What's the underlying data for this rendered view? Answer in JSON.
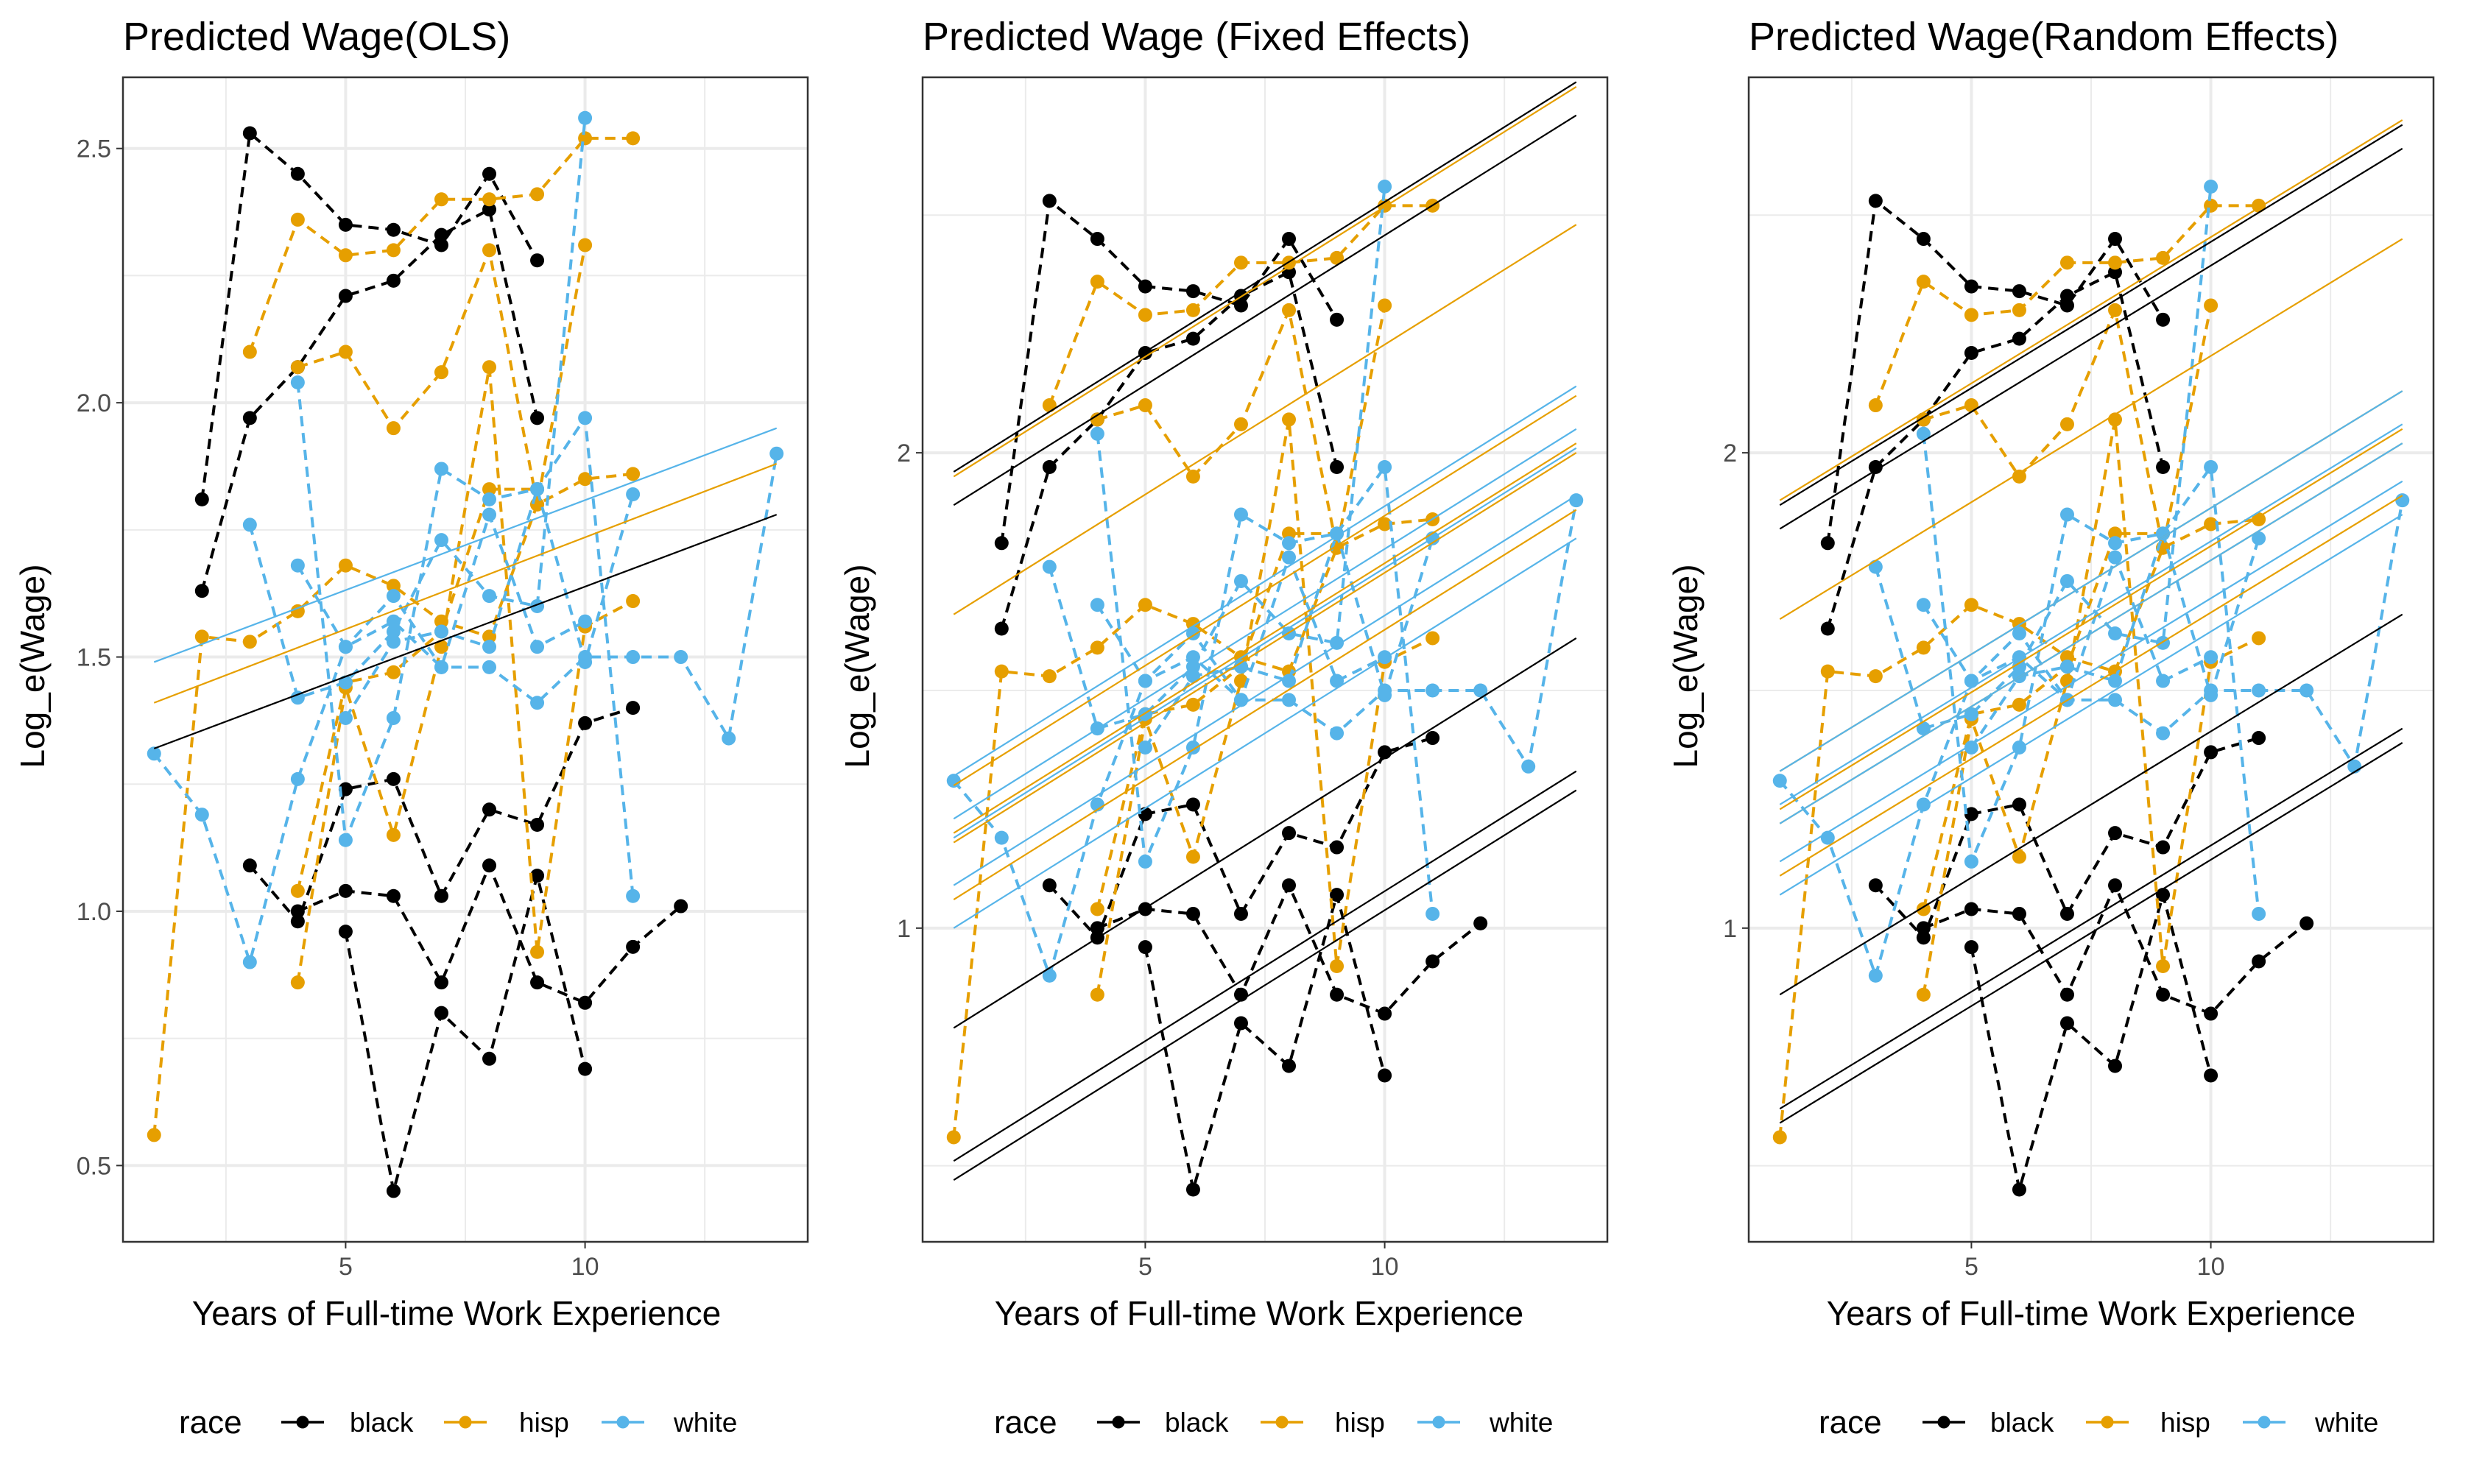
{
  "colors": {
    "black": "#000000",
    "hisp": "#E69F00",
    "white": "#56B4E9",
    "grid": "#EBEBEB",
    "panel_border": "#333333"
  },
  "legend": {
    "title": "race",
    "entries": [
      "black",
      "hisp",
      "white"
    ],
    "position": "bottom"
  },
  "chart_data": [
    {
      "type": "line",
      "title": "Predicted Wage(OLS)",
      "xlabel": "Years of Full-time Work Experience",
      "ylabel": "Log_e(Wage)",
      "xlim": [
        0.35,
        14.65
      ],
      "ylim": [
        0.35,
        2.64
      ],
      "xticks": [
        5,
        10
      ],
      "yticks": [
        0.5,
        1.0,
        1.5,
        2.0,
        2.5
      ],
      "ytick_labels": [
        "0.5",
        "1.0",
        "1.5",
        "2.0",
        "2.5"
      ],
      "grid": true,
      "fitted_lines": [
        {
          "race": "black",
          "x": [
            1,
            14
          ],
          "y": [
            1.32,
            1.78
          ]
        },
        {
          "race": "hisp",
          "x": [
            1,
            14
          ],
          "y": [
            1.41,
            1.88
          ]
        },
        {
          "race": "white",
          "x": [
            1,
            14
          ],
          "y": [
            1.49,
            1.95
          ]
        }
      ]
    },
    {
      "type": "line",
      "title": "Predicted Wage (Fixed Effects)",
      "xlabel": "Years of Full-time Work Experience",
      "ylabel": "Log_e(Wage)",
      "xlim": [
        0.35,
        14.65
      ],
      "ylim": [
        0.34,
        2.79
      ],
      "xticks": [
        5,
        10
      ],
      "yticks": [
        1,
        2
      ],
      "ytick_labels": [
        "1",
        "2"
      ],
      "grid": true,
      "fitted_lines": [
        {
          "race": "black",
          "x": [
            1,
            14
          ],
          "y": [
            1.96,
            2.78
          ]
        },
        {
          "race": "black",
          "x": [
            1,
            14
          ],
          "y": [
            1.89,
            2.71
          ]
        },
        {
          "race": "black",
          "x": [
            1,
            14
          ],
          "y": [
            0.79,
            1.61
          ]
        },
        {
          "race": "black",
          "x": [
            1,
            14
          ],
          "y": [
            0.51,
            1.33
          ]
        },
        {
          "race": "black",
          "x": [
            1,
            14
          ],
          "y": [
            0.47,
            1.29
          ]
        },
        {
          "race": "hisp",
          "x": [
            1,
            14
          ],
          "y": [
            1.95,
            2.77
          ]
        },
        {
          "race": "hisp",
          "x": [
            1,
            14
          ],
          "y": [
            1.66,
            2.48
          ]
        },
        {
          "race": "hisp",
          "x": [
            1,
            14
          ],
          "y": [
            1.3,
            2.12
          ]
        },
        {
          "race": "hisp",
          "x": [
            1,
            14
          ],
          "y": [
            1.2,
            2.02
          ]
        },
        {
          "race": "hisp",
          "x": [
            1,
            14
          ],
          "y": [
            1.18,
            2.0
          ]
        },
        {
          "race": "hisp",
          "x": [
            1,
            14
          ],
          "y": [
            1.06,
            1.88
          ]
        },
        {
          "race": "white",
          "x": [
            1,
            14
          ],
          "y": [
            1.32,
            2.14
          ]
        },
        {
          "race": "white",
          "x": [
            1,
            14
          ],
          "y": [
            1.23,
            2.05
          ]
        },
        {
          "race": "white",
          "x": [
            1,
            14
          ],
          "y": [
            1.19,
            2.01
          ]
        },
        {
          "race": "white",
          "x": [
            1,
            14
          ],
          "y": [
            1.09,
            1.91
          ]
        },
        {
          "race": "white",
          "x": [
            1,
            14
          ],
          "y": [
            1.0,
            1.82
          ]
        }
      ]
    },
    {
      "type": "line",
      "title": "Predicted Wage(Random Effects)",
      "xlabel": "Years of Full-time Work Experience",
      "ylabel": "Log_e(Wage)",
      "xlim": [
        0.35,
        14.65
      ],
      "ylim": [
        0.34,
        2.79
      ],
      "xticks": [
        5,
        10
      ],
      "yticks": [
        1,
        2
      ],
      "ytick_labels": [
        "1",
        "2"
      ],
      "grid": true,
      "fitted_lines": [
        {
          "race": "black",
          "x": [
            1,
            14
          ],
          "y": [
            1.89,
            2.69
          ]
        },
        {
          "race": "black",
          "x": [
            1,
            14
          ],
          "y": [
            1.84,
            2.64
          ]
        },
        {
          "race": "black",
          "x": [
            1,
            14
          ],
          "y": [
            0.86,
            1.66
          ]
        },
        {
          "race": "black",
          "x": [
            1,
            14
          ],
          "y": [
            0.62,
            1.42
          ]
        },
        {
          "race": "black",
          "x": [
            1,
            14
          ],
          "y": [
            0.59,
            1.39
          ]
        },
        {
          "race": "hisp",
          "x": [
            1,
            14
          ],
          "y": [
            1.9,
            2.7
          ]
        },
        {
          "race": "hisp",
          "x": [
            1,
            14
          ],
          "y": [
            1.65,
            2.45
          ]
        },
        {
          "race": "hisp",
          "x": [
            1,
            14
          ],
          "y": [
            1.33,
            2.13
          ]
        },
        {
          "race": "hisp",
          "x": [
            1,
            14
          ],
          "y": [
            1.25,
            2.05
          ]
        },
        {
          "race": "hisp",
          "x": [
            1,
            14
          ],
          "y": [
            1.22,
            2.02
          ]
        },
        {
          "race": "hisp",
          "x": [
            1,
            14
          ],
          "y": [
            1.11,
            1.91
          ]
        },
        {
          "race": "white",
          "x": [
            1,
            14
          ],
          "y": [
            1.33,
            2.13
          ]
        },
        {
          "race": "white",
          "x": [
            1,
            14
          ],
          "y": [
            1.26,
            2.06
          ]
        },
        {
          "race": "white",
          "x": [
            1,
            14
          ],
          "y": [
            1.22,
            2.02
          ]
        },
        {
          "race": "white",
          "x": [
            1,
            14
          ],
          "y": [
            1.14,
            1.94
          ]
        },
        {
          "race": "white",
          "x": [
            1,
            14
          ],
          "y": [
            1.07,
            1.87
          ]
        }
      ]
    }
  ],
  "observed_series": [
    {
      "race": "black",
      "x": [
        2,
        3,
        4,
        5,
        6,
        7,
        8,
        9
      ],
      "y": [
        1.81,
        2.53,
        2.45,
        2.35,
        2.34,
        2.31,
        2.45,
        2.28
      ]
    },
    {
      "race": "black",
      "x": [
        2,
        3,
        4,
        5,
        6,
        7,
        8,
        9
      ],
      "y": [
        1.63,
        1.97,
        2.07,
        2.21,
        2.24,
        2.33,
        2.38,
        1.97
      ]
    },
    {
      "race": "black",
      "x": [
        3,
        4,
        5,
        6,
        7,
        8,
        9,
        10,
        11
      ],
      "y": [
        1.09,
        0.98,
        1.24,
        1.26,
        1.03,
        1.2,
        1.17,
        1.37,
        1.4
      ]
    },
    {
      "race": "black",
      "x": [
        4,
        5,
        6,
        7,
        8,
        9,
        10,
        11,
        12
      ],
      "y": [
        1.0,
        1.04,
        1.03,
        0.86,
        1.09,
        0.86,
        0.82,
        0.93,
        1.01
      ]
    },
    {
      "race": "black",
      "x": [
        5,
        6,
        7,
        8,
        9,
        10
      ],
      "y": [
        0.96,
        0.45,
        0.8,
        0.71,
        1.07,
        0.69
      ]
    },
    {
      "race": "hisp",
      "x": [
        1,
        2,
        3,
        4,
        5,
        6,
        7,
        8,
        9,
        10,
        11
      ],
      "y": [
        0.56,
        1.54,
        1.53,
        1.59,
        1.68,
        1.64,
        1.57,
        1.54,
        1.8,
        1.85,
        1.86
      ]
    },
    {
      "race": "hisp",
      "x": [
        3,
        4,
        5,
        6,
        7,
        8,
        9,
        10,
        11
      ],
      "y": [
        2.1,
        2.36,
        2.29,
        2.3,
        2.4,
        2.4,
        2.41,
        2.52,
        2.52
      ]
    },
    {
      "race": "hisp",
      "x": [
        4,
        5,
        6,
        7,
        8,
        9,
        10
      ],
      "y": [
        2.07,
        2.1,
        1.95,
        2.06,
        2.3,
        1.8,
        2.31
      ]
    },
    {
      "race": "hisp",
      "x": [
        4,
        5,
        6,
        7,
        8,
        9,
        10,
        11
      ],
      "y": [
        0.86,
        1.44,
        1.15,
        1.52,
        2.07,
        0.92,
        1.56,
        1.61
      ]
    },
    {
      "race": "hisp",
      "x": [
        4,
        5,
        6,
        7,
        8,
        9
      ],
      "y": [
        1.04,
        1.45,
        1.47,
        1.55,
        1.83,
        1.83
      ]
    },
    {
      "race": "white",
      "x": [
        1,
        2,
        3,
        4,
        5,
        6,
        7,
        8,
        9,
        10,
        11,
        12,
        13,
        14
      ],
      "y": [
        1.31,
        1.19,
        0.9,
        1.26,
        1.52,
        1.62,
        1.48,
        1.48,
        1.41,
        1.5,
        1.5,
        1.5,
        1.34,
        1.9
      ]
    },
    {
      "race": "white",
      "x": [
        3,
        4,
        5,
        6,
        7,
        8,
        9,
        10
      ],
      "y": [
        1.76,
        1.42,
        1.45,
        1.55,
        1.73,
        1.62,
        1.6,
        2.56
      ]
    },
    {
      "race": "white",
      "x": [
        4,
        5,
        6,
        7,
        8,
        9,
        10,
        11
      ],
      "y": [
        2.04,
        1.14,
        1.38,
        1.87,
        1.81,
        1.83,
        1.97,
        1.03
      ]
    },
    {
      "race": "white",
      "x": [
        4,
        5,
        6,
        7,
        8,
        9,
        10
      ],
      "y": [
        1.68,
        1.52,
        1.57,
        1.48,
        1.78,
        1.52,
        1.57
      ]
    },
    {
      "race": "white",
      "x": [
        5,
        6,
        7,
        8,
        9,
        10,
        11
      ],
      "y": [
        1.38,
        1.53,
        1.55,
        1.52,
        1.83,
        1.49,
        1.82
      ]
    }
  ]
}
